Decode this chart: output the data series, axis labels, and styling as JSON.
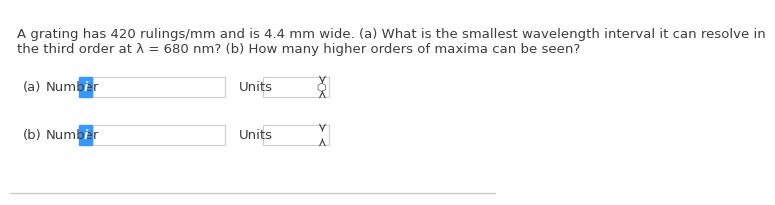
{
  "background_color": "#ffffff",
  "text_color": "#3d3d3d",
  "question_text_line1": "A grating has 420 rulings/mm and is 4.4 mm wide. (a) What is the smallest wavelength interval it can resolve in",
  "question_text_line2": "the third order at λ = 680 nm? (b) How many higher orders of maxima can be seen?",
  "label_a": "(a)",
  "label_b": "(b)",
  "number_label": "Number",
  "units_label": "Units",
  "info_button_color": "#3399ff",
  "info_button_text": "i",
  "input_box_color": "#ffffff",
  "input_box_border": "#cccccc",
  "units_box_color": "#ffffff",
  "units_box_border": "#cccccc",
  "dropdown_symbol": "◄►",
  "font_size_question": 9.5,
  "font_size_labels": 9.5,
  "bottom_border_color": "#cccccc"
}
